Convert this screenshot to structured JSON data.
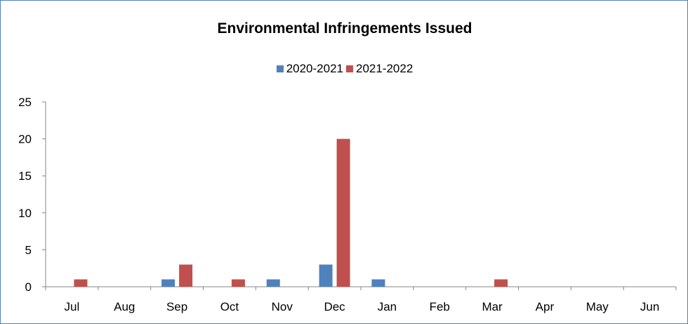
{
  "chart_data": {
    "type": "bar",
    "title": "Environmental Infringements Issued",
    "categories": [
      "Jul",
      "Aug",
      "Sep",
      "Oct",
      "Nov",
      "Dec",
      "Jan",
      "Feb",
      "Mar",
      "Apr",
      "May",
      "Jun"
    ],
    "series": [
      {
        "name": "2020-2021",
        "color": "#4f81bd",
        "values": [
          0,
          0,
          1,
          0,
          1,
          3,
          1,
          0,
          0,
          0,
          0,
          0
        ]
      },
      {
        "name": "2021-2022",
        "color": "#c0504d",
        "values": [
          1,
          0,
          3,
          1,
          0,
          20,
          0,
          0,
          1,
          0,
          0,
          0
        ]
      }
    ],
    "ylim": [
      0,
      25
    ],
    "yticks": [
      "0",
      "5",
      "10",
      "15",
      "20",
      "25"
    ],
    "grid": true,
    "legend_position": "top",
    "frame_color": "#4f81bd"
  }
}
